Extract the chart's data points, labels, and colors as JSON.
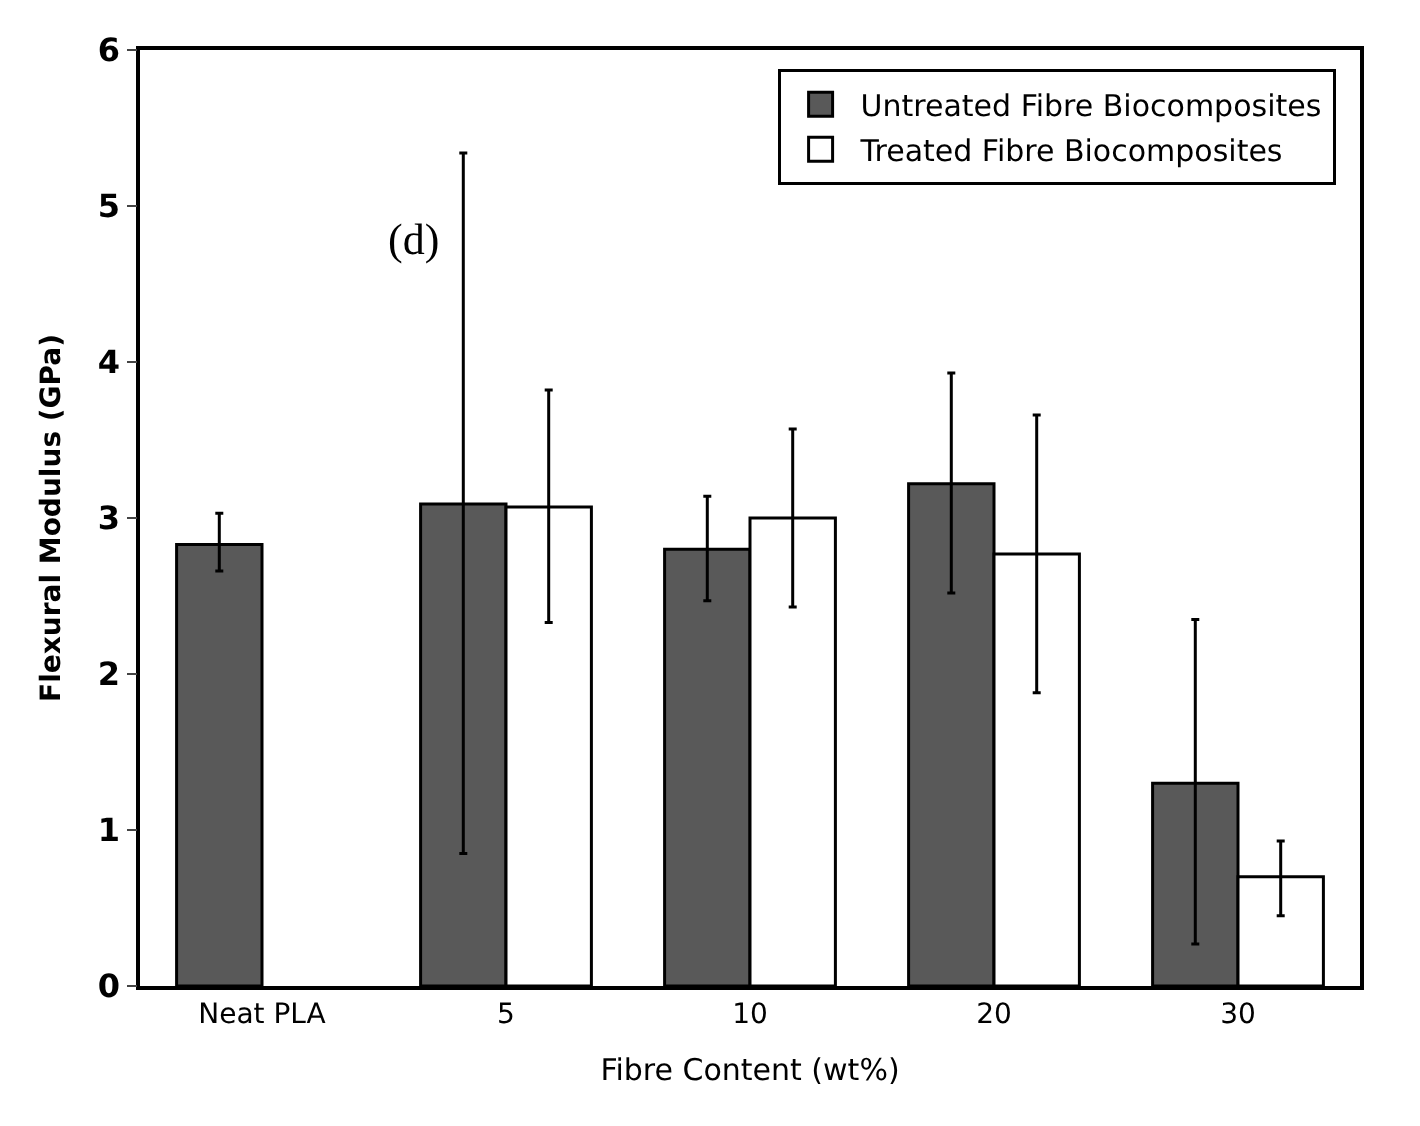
{
  "chart_data": {
    "type": "bar",
    "xlabel": "Fibre Content (wt%)",
    "ylabel": "Flexural Modulus (GPa)",
    "categories": [
      "Neat PLA",
      "5",
      "10",
      "20",
      "30"
    ],
    "series": [
      {
        "name": "Untreated Fibre Biocomposites",
        "color": "#595959",
        "values": [
          2.83,
          3.09,
          2.8,
          3.22,
          1.3
        ],
        "errors": [
          [
            2.66,
            3.03
          ],
          [
            0.85,
            5.34
          ],
          [
            2.47,
            3.14
          ],
          [
            2.52,
            3.93
          ],
          [
            0.27,
            2.35
          ]
        ]
      },
      {
        "name": "Treated Fibre Biocomposites",
        "color": "#ffffff",
        "values": [
          null,
          3.07,
          3.0,
          2.77,
          0.7
        ],
        "errors": [
          null,
          [
            2.33,
            3.82
          ],
          [
            2.43,
            3.57
          ],
          [
            1.88,
            3.66
          ],
          [
            0.45,
            0.93
          ]
        ]
      }
    ],
    "ylim": [
      0,
      6
    ],
    "yticks": [
      0,
      1,
      2,
      3,
      4,
      5,
      6
    ],
    "legend": "top right",
    "annotations": [
      "(d)"
    ]
  }
}
